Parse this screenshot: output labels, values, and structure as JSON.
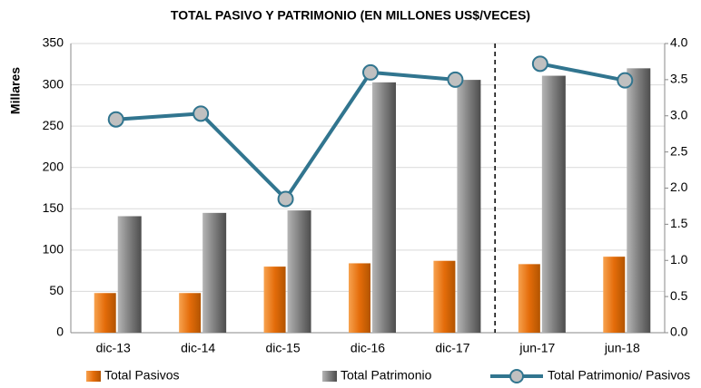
{
  "chart_data": {
    "type": "bar",
    "title": "TOTAL PASIVO Y PATRIMONIO (EN MILLONES US$/VECES)",
    "y_label": "Millares",
    "categories": [
      "dic-13",
      "dic-14",
      "dic-15",
      "dic-16",
      "dic-17",
      "jun-17",
      "jun-18"
    ],
    "series": [
      {
        "name": "Total Pasivos",
        "color": "#e46c0a",
        "values": [
          48,
          48,
          80,
          84,
          87,
          83,
          92
        ]
      },
      {
        "name": "Total Patrimonio",
        "color": "#7f7f7f",
        "values": [
          141,
          145,
          148,
          303,
          306,
          311,
          320
        ]
      },
      {
        "name": "Total Patrimonio/ Pasivos",
        "color": "#31758f",
        "type": "line",
        "axis": "y2",
        "values": [
          2.95,
          3.03,
          1.85,
          3.6,
          3.5,
          3.72,
          3.49
        ]
      }
    ],
    "divider_after": 4,
    "ylim": [
      0,
      350
    ],
    "yticks": [
      0,
      50,
      100,
      150,
      200,
      250,
      300,
      350
    ],
    "y2lim": [
      0,
      4
    ],
    "y2ticks": [
      {
        "value": 0,
        "label": "0.0"
      },
      0.5,
      {
        "value": 1,
        "label": "1.0"
      },
      1.5,
      {
        "value": 2,
        "label": "2.0"
      },
      2.5,
      {
        "value": 3,
        "label": "3.0"
      },
      3.5,
      {
        "value": 4,
        "label": "4.0"
      }
    ],
    "grid": true,
    "legend": "bottom"
  }
}
